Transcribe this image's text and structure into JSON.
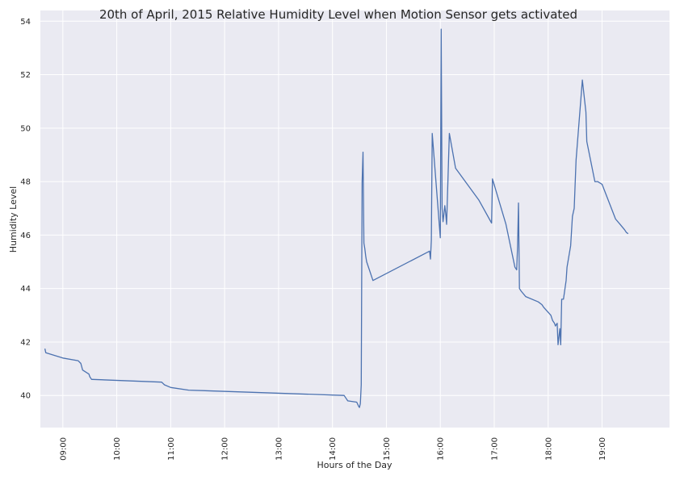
{
  "chart_data": {
    "type": "line",
    "title": "20th of April, 2015 Relative Humidity Level when Motion Sensor gets activated",
    "xlabel": "Hours of the Day",
    "ylabel": "Humidity Level",
    "x_ticks": [
      "09:00",
      "10:00",
      "11:00",
      "12:00",
      "13:00",
      "14:00",
      "15:00",
      "16:00",
      "17:00",
      "18:00",
      "19:00"
    ],
    "y_ticks": [
      40,
      42,
      44,
      46,
      48,
      50,
      52,
      54
    ],
    "xlim": [
      "08:35",
      "20:15"
    ],
    "ylim": [
      38.8,
      54.4
    ],
    "grid": true,
    "colors": {
      "line": "#4c72b0",
      "background": "#eaeaf2",
      "grid": "#ffffff"
    },
    "series": [
      {
        "x": [
          "08:40",
          "08:41",
          "09:00",
          "09:17",
          "09:20",
          "09:22",
          "09:29",
          "09:30",
          "09:32",
          "09:33",
          "10:50",
          "10:53",
          "11:00",
          "11:20",
          "14:13",
          "14:17",
          "14:27",
          "14:29",
          "14:30",
          "14:31",
          "14:32",
          "14:33",
          "14:34",
          "14:35",
          "14:36",
          "14:37",
          "14:38",
          "14:45",
          "15:48",
          "15:49",
          "15:50",
          "15:51",
          "16:00",
          "16:01",
          "16:02",
          "16:03",
          "16:05",
          "16:06",
          "16:07",
          "16:10",
          "16:17",
          "16:43",
          "16:57",
          "16:58",
          "17:13",
          "17:23",
          "17:25",
          "17:26",
          "17:27",
          "17:28",
          "17:30",
          "17:35",
          "17:49",
          "17:53",
          "17:55",
          "18:03",
          "18:05",
          "18:07",
          "18:08",
          "18:10",
          "18:11",
          "18:13",
          "18:14",
          "18:15",
          "18:17",
          "18:20",
          "18:21",
          "18:25",
          "18:27",
          "18:29",
          "18:31",
          "18:38",
          "18:42",
          "18:43",
          "18:52",
          "18:55",
          "19:00",
          "19:15",
          "19:20",
          "19:25",
          "19:27",
          "19:29"
        ],
        "y": [
          41.75,
          41.6,
          41.4,
          41.3,
          41.2,
          40.95,
          40.8,
          40.7,
          40.6,
          40.6,
          40.5,
          40.4,
          40.3,
          40.2,
          40.0,
          39.8,
          39.75,
          39.6,
          39.55,
          39.7,
          40.4,
          48.0,
          49.1,
          45.7,
          45.5,
          45.2,
          45.0,
          44.3,
          45.4,
          45.1,
          45.8,
          49.8,
          45.9,
          53.7,
          47.0,
          46.5,
          47.1,
          46.8,
          46.4,
          49.8,
          48.5,
          47.3,
          46.45,
          48.1,
          46.4,
          44.8,
          44.7,
          45.6,
          47.2,
          44.0,
          43.9,
          43.7,
          43.5,
          43.4,
          43.3,
          43.0,
          42.8,
          42.7,
          42.6,
          42.7,
          41.9,
          42.5,
          41.9,
          43.6,
          43.6,
          44.3,
          44.8,
          45.6,
          46.7,
          47.0,
          48.8,
          51.8,
          50.6,
          49.5,
          48.0,
          48.0,
          47.9,
          46.6,
          46.4,
          46.2,
          46.1,
          46.05
        ]
      }
    ]
  }
}
